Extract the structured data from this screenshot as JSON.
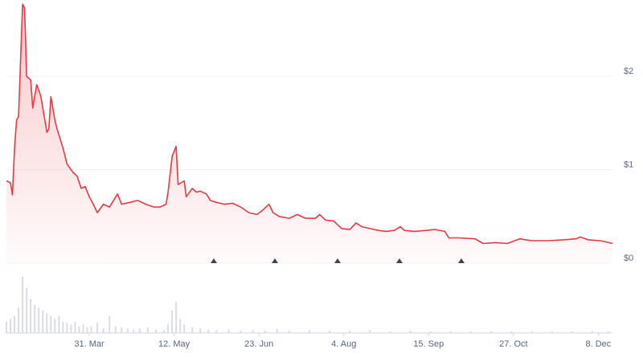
{
  "chart_data": [
    {
      "type": "line",
      "color": "#ea3943",
      "x": [
        0,
        2,
        3,
        4,
        5,
        6,
        8,
        9,
        10,
        12,
        13,
        15,
        17,
        19,
        20,
        21,
        22,
        24,
        25,
        28,
        30,
        33,
        35,
        37,
        39,
        41,
        43,
        45,
        48,
        51,
        53,
        55,
        57,
        61,
        65,
        69,
        73,
        76,
        79,
        80,
        82,
        84,
        85,
        88,
        89,
        92,
        94,
        96,
        99,
        101,
        104,
        108,
        112,
        116,
        120,
        124,
        127,
        130,
        132,
        135,
        140,
        144,
        148,
        153,
        155,
        158,
        162,
        166,
        170,
        173,
        176,
        180,
        184,
        188,
        192,
        195,
        197,
        202,
        208,
        212,
        217,
        219,
        224,
        232,
        236,
        242,
        248,
        254,
        260,
        268,
        276,
        282,
        284,
        288,
        294,
        300
      ],
      "values": [
        0.88,
        0.86,
        0.73,
        1.23,
        1.53,
        1.57,
        2.77,
        2.73,
        2.0,
        1.96,
        1.66,
        1.91,
        1.79,
        1.53,
        1.4,
        1.44,
        1.78,
        1.53,
        1.44,
        1.23,
        1.06,
        0.97,
        0.93,
        0.8,
        0.82,
        0.71,
        0.63,
        0.54,
        0.63,
        0.6,
        0.67,
        0.74,
        0.63,
        0.65,
        0.67,
        0.63,
        0.6,
        0.6,
        0.63,
        0.76,
        1.14,
        1.25,
        0.84,
        0.88,
        0.71,
        0.8,
        0.76,
        0.77,
        0.74,
        0.67,
        0.65,
        0.63,
        0.64,
        0.6,
        0.54,
        0.52,
        0.57,
        0.63,
        0.54,
        0.5,
        0.48,
        0.52,
        0.48,
        0.48,
        0.52,
        0.46,
        0.45,
        0.37,
        0.36,
        0.43,
        0.39,
        0.37,
        0.35,
        0.34,
        0.35,
        0.39,
        0.35,
        0.34,
        0.35,
        0.36,
        0.34,
        0.27,
        0.27,
        0.26,
        0.21,
        0.22,
        0.21,
        0.26,
        0.24,
        0.24,
        0.25,
        0.26,
        0.28,
        0.25,
        0.24,
        0.21
      ],
      "xlim": [
        0,
        300
      ],
      "ylim": [
        0,
        2.8
      ],
      "yticks": [
        {
          "value": 0,
          "label": "$0"
        },
        {
          "value": 1,
          "label": "$1"
        },
        {
          "value": 2,
          "label": "$2"
        }
      ],
      "grid": true
    },
    {
      "type": "bar",
      "color": "#d9dde3",
      "x": [
        0,
        2,
        4,
        6,
        8,
        10,
        12,
        14,
        16,
        18,
        20,
        22,
        24,
        26,
        28,
        30,
        32,
        34,
        36,
        38,
        40,
        42,
        45,
        48,
        51,
        54,
        57,
        60,
        63,
        66,
        70,
        74,
        78,
        80,
        82,
        84,
        86,
        88,
        92,
        96,
        100,
        104,
        110,
        116,
        122,
        128,
        134,
        140,
        150,
        160,
        170,
        180,
        190,
        200,
        210,
        220,
        230,
        240,
        250,
        260,
        270,
        280,
        290,
        298
      ],
      "values": [
        20,
        25,
        30,
        45,
        100,
        80,
        60,
        50,
        45,
        40,
        35,
        30,
        25,
        30,
        20,
        18,
        15,
        20,
        12,
        15,
        10,
        12,
        18,
        8,
        30,
        12,
        10,
        8,
        6,
        8,
        10,
        6,
        5,
        15,
        40,
        55,
        25,
        15,
        10,
        8,
        6,
        5,
        6,
        4,
        5,
        4,
        7,
        4,
        5,
        4,
        4,
        5,
        3,
        4,
        3,
        3,
        3,
        3,
        3,
        3,
        3,
        3,
        3,
        3
      ],
      "xlim": [
        0,
        300
      ],
      "ylim": [
        0,
        100
      ],
      "xticks": [
        {
          "value": 41,
          "label": "31. Mar"
        },
        {
          "value": 83,
          "label": "12. May"
        },
        {
          "value": 125,
          "label": "23. Jun"
        },
        {
          "value": 167,
          "label": "4. Aug"
        },
        {
          "value": 209,
          "label": "15. Sep"
        },
        {
          "value": 251,
          "label": "27. Oct"
        },
        {
          "value": 293,
          "label": "8. Dec"
        }
      ]
    }
  ]
}
